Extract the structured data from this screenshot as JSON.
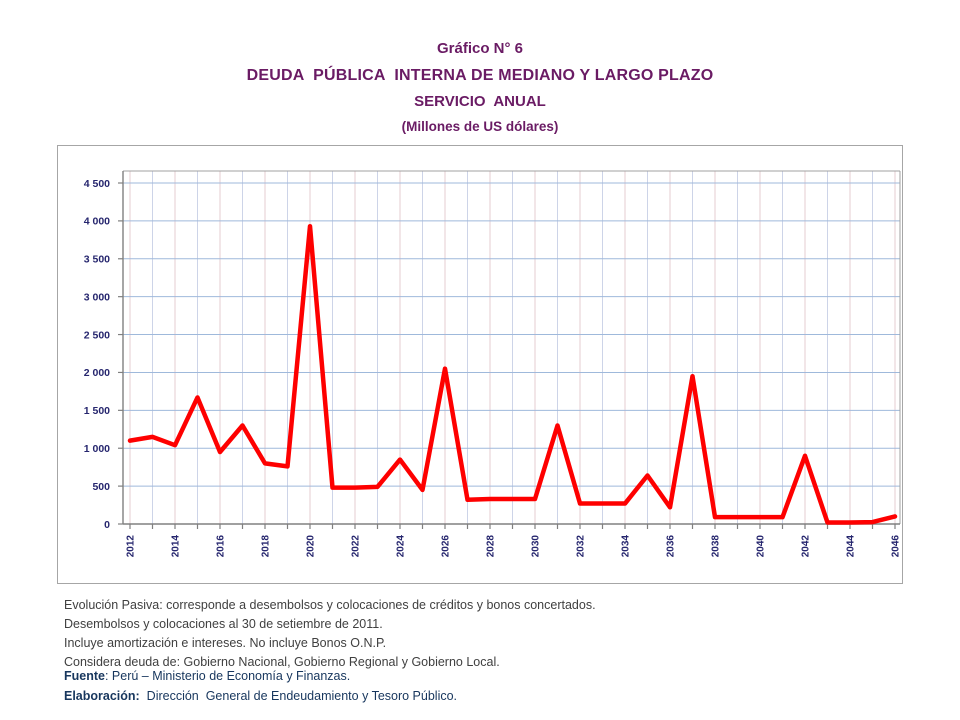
{
  "title": {
    "line1": "Gráfico N° 6",
    "line2": "DEUDA  PÚBLICA  INTERNA DE MEDIANO Y LARGO PLAZO",
    "line3": "SERVICIO  ANUAL",
    "line4": "(Millones de US dólares)"
  },
  "chart_data": {
    "type": "line",
    "title": "Servicio anual de la deuda pública interna de mediano y largo plazo",
    "xlabel": "",
    "ylabel": "Millones de US dólares",
    "x": [
      2012,
      2013,
      2014,
      2015,
      2016,
      2017,
      2018,
      2019,
      2020,
      2021,
      2022,
      2023,
      2024,
      2025,
      2026,
      2027,
      2028,
      2029,
      2030,
      2031,
      2032,
      2033,
      2034,
      2035,
      2036,
      2037,
      2038,
      2039,
      2040,
      2041,
      2042,
      2043,
      2044,
      2045,
      2046
    ],
    "series": [
      {
        "name": "Servicio anual",
        "values": [
          1100,
          1150,
          1040,
          1670,
          950,
          1300,
          800,
          760,
          3930,
          480,
          480,
          490,
          850,
          450,
          2050,
          320,
          330,
          330,
          330,
          1300,
          270,
          270,
          270,
          640,
          220,
          1950,
          90,
          90,
          90,
          90,
          900,
          20,
          20,
          25,
          100
        ]
      }
    ],
    "ylim": [
      0,
      4500
    ],
    "ytick_step": 500,
    "ytick_labels": [
      "0",
      "500",
      "1 000",
      "1 500",
      "2 000",
      "2 500",
      "3 000",
      "3 500",
      "4 000",
      "4 500"
    ],
    "xtick_labels": [
      "2012",
      "2014",
      "2016",
      "2018",
      "2020",
      "2022",
      "2024",
      "2026",
      "2028",
      "2030",
      "2032",
      "2034",
      "2036",
      "2038",
      "2040",
      "2042",
      "2044",
      "2046"
    ],
    "grid": true,
    "legend_position": "none"
  },
  "footnotes": [
    "Evolución Pasiva: corresponde a desembolsos y colocaciones de créditos y bonos concertados.",
    "Desembolsos y colocaciones al 30 de setiembre de 2011.",
    "Incluye amortización e intereses. No incluye Bonos O.N.P.",
    "Considera deuda de: Gobierno Nacional, Gobierno Regional y Gobierno Local."
  ],
  "source": {
    "label1": "Fuente",
    "text1": ": Perú – Ministerio de Economía y Finanzas.",
    "label2": "Elaboración:",
    "text2": "  Dirección  General de Endeudamiento y Tesoro Público."
  },
  "colors": {
    "title": "#6A1B64",
    "axis_label": "#26266E",
    "footnote": "#404040",
    "source": "#17365D",
    "line": "#FE0000",
    "grid_h": "#9FB9DB",
    "grid_v_even": "#E6CDD2",
    "grid_v_odd": "#CDD4E8",
    "axis": "#808080",
    "plot_border": "#A0A0A0",
    "frame_border": "#A6A6A6"
  }
}
